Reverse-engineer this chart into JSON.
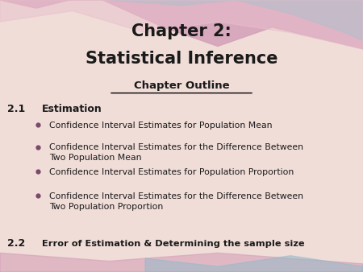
{
  "title_line1": "Chapter 2:",
  "title_line2": "Statistical Inference",
  "subtitle": "Chapter Outline",
  "section1_num": "2.1",
  "section1_label": "Estimation",
  "bullets": [
    "Confidence Interval Estimates for Population Mean",
    "Confidence Interval Estimates for the Difference Between\nTwo Population Mean",
    "Confidence Interval Estimates for Population Proportion",
    "Confidence Interval Estimates for the Difference Between\nTwo Population Proportion"
  ],
  "section2_num": "2.2",
  "section2_label": "Error of Estimation & Determining the sample size",
  "bg_color": "#f0ddd8",
  "title_color": "#1a1a1a",
  "text_color": "#1a1a1a",
  "bullet_color": "#7a4a6a",
  "wave_pink": "#d4a0b8",
  "wave_teal": "#90b8c8",
  "wave_light": "#e8c0cc"
}
